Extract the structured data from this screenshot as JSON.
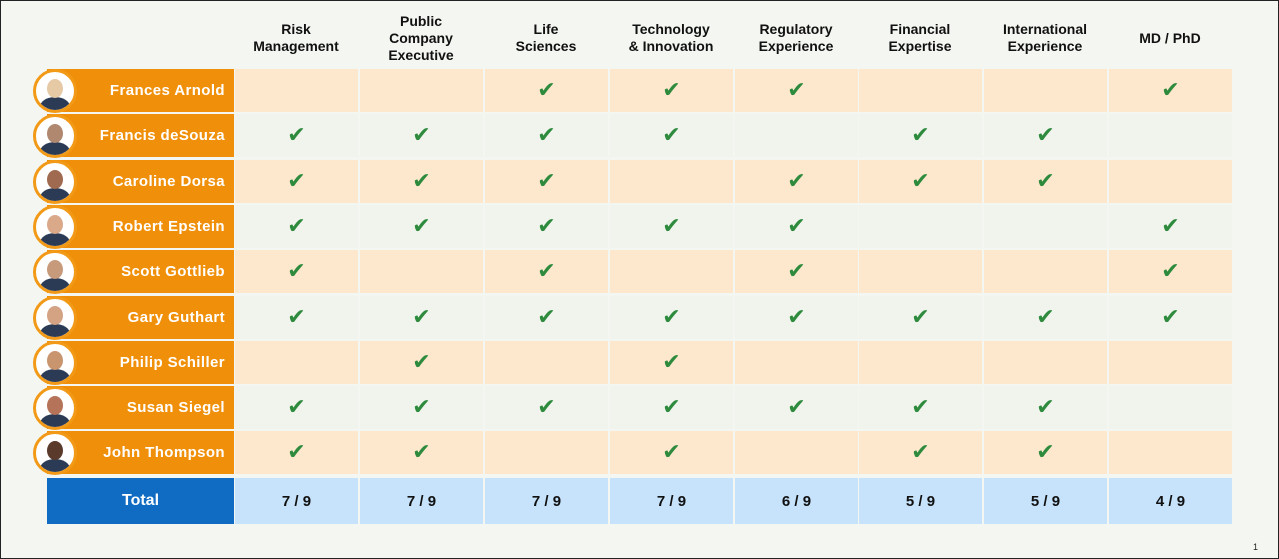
{
  "columns": [
    "Risk\nManagement",
    "Public\nCompany\nExecutive",
    "Life\nSciences",
    "Technology\n& Innovation",
    "Regulatory\nExperience",
    "Financial\nExpertise",
    "International\nExperience",
    "MD / PhD"
  ],
  "check_symbol": "✔",
  "rows": [
    {
      "name": "Frances Arnold",
      "checks": [
        false,
        false,
        true,
        true,
        true,
        false,
        false,
        true
      ],
      "avatar_color": "#e6c9a5"
    },
    {
      "name": "Francis deSouza",
      "checks": [
        true,
        true,
        true,
        true,
        false,
        true,
        true,
        false
      ],
      "avatar_color": "#b08870"
    },
    {
      "name": "Caroline Dorsa",
      "checks": [
        true,
        true,
        true,
        false,
        true,
        true,
        true,
        false
      ],
      "avatar_color": "#a06a50"
    },
    {
      "name": "Robert Epstein",
      "checks": [
        true,
        true,
        true,
        true,
        true,
        false,
        false,
        true
      ],
      "avatar_color": "#d9a98a"
    },
    {
      "name": "Scott Gottlieb",
      "checks": [
        true,
        false,
        true,
        false,
        true,
        false,
        false,
        true
      ],
      "avatar_color": "#c79a7c"
    },
    {
      "name": "Gary Guthart",
      "checks": [
        true,
        true,
        true,
        true,
        true,
        true,
        true,
        true
      ],
      "avatar_color": "#d3a384"
    },
    {
      "name": "Philip Schiller",
      "checks": [
        false,
        true,
        false,
        true,
        false,
        false,
        false,
        false
      ],
      "avatar_color": "#c8956f"
    },
    {
      "name": "Susan Siegel",
      "checks": [
        true,
        true,
        true,
        true,
        true,
        true,
        true,
        false
      ],
      "avatar_color": "#b5735a"
    },
    {
      "name": "John Thompson",
      "checks": [
        true,
        true,
        false,
        true,
        false,
        true,
        true,
        false
      ],
      "avatar_color": "#5a3a2a"
    }
  ],
  "total": {
    "label": "Total",
    "values": [
      "7 / 9",
      "7 / 9",
      "7 / 9",
      "7 / 9",
      "6 / 9",
      "5 / 9",
      "5 / 9",
      "4 / 9"
    ]
  },
  "page_number": "1",
  "colors": {
    "name_bg": "#f0900a",
    "row_orange": "#fde8cd",
    "row_light": "#f1f4ed",
    "check": "#2e8b3e",
    "total_label_bg": "#0f6cc2",
    "total_cell_bg": "#c6e3fb"
  }
}
